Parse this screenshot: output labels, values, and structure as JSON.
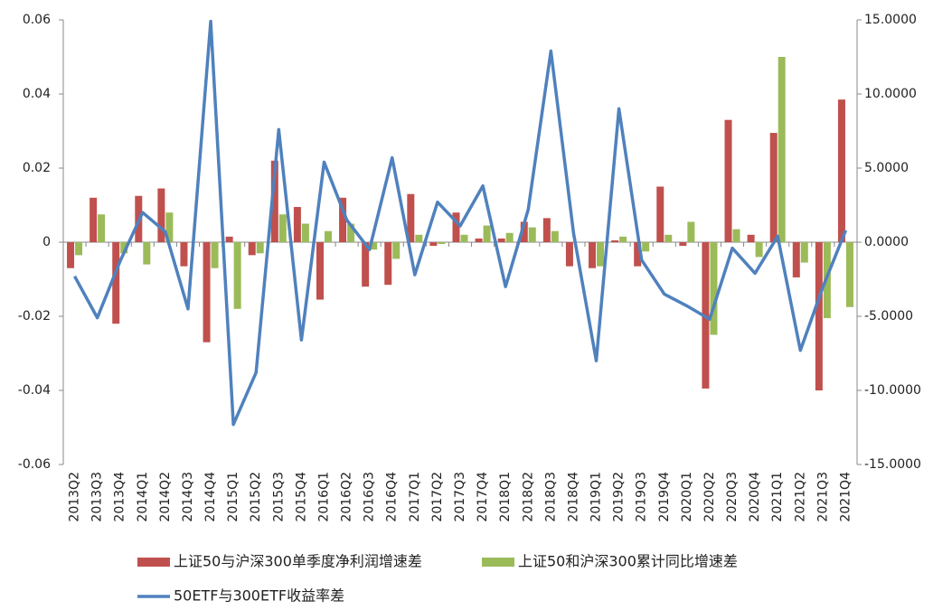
{
  "chart_data": {
    "type": "bar-line",
    "categories": [
      "2013Q2",
      "2013Q3",
      "2013Q4",
      "2014Q1",
      "2014Q2",
      "2014Q3",
      "2014Q4",
      "2015Q1",
      "2015Q2",
      "2015Q3",
      "2015Q4",
      "2016Q1",
      "2016Q2",
      "2016Q3",
      "2016Q4",
      "2017Q1",
      "2017Q2",
      "2017Q3",
      "2017Q4",
      "2018Q1",
      "2018Q2",
      "2018Q3",
      "2018Q4",
      "2019Q1",
      "2019Q2",
      "2019Q3",
      "2019Q4",
      "2020Q1",
      "2020Q2",
      "2020Q3",
      "2020Q4",
      "2021Q1",
      "2021Q2",
      "2021Q3",
      "2021Q4"
    ],
    "series": [
      {
        "name": "上证50与沪深300单季度净利润增速差",
        "type": "bar",
        "color": "#c0504d",
        "values": [
          -0.007,
          0.012,
          -0.022,
          0.0125,
          0.0145,
          -0.0065,
          -0.027,
          0.0015,
          -0.0035,
          0.022,
          0.0095,
          -0.0155,
          0.012,
          -0.012,
          -0.0115,
          0.013,
          -0.001,
          0.008,
          0.001,
          0.001,
          0.0055,
          0.0065,
          -0.0065,
          -0.007,
          0.0005,
          -0.0065,
          0.015,
          -0.001,
          -0.0395,
          0.033,
          0.002,
          0.0295,
          -0.0095,
          -0.04,
          0.0385
        ]
      },
      {
        "name": "上证50和沪深300累计同比增速差",
        "type": "bar",
        "color": "#9bbb59",
        "values": [
          -0.0035,
          0.0075,
          -0.003,
          -0.006,
          0.008,
          0,
          -0.007,
          -0.018,
          -0.003,
          0.0075,
          0.005,
          0.003,
          0.005,
          -0.002,
          -0.0045,
          0.002,
          -0.0005,
          0.002,
          0.0045,
          0.0025,
          0.004,
          0.003,
          0,
          -0.0065,
          0.0015,
          -0.0025,
          0.002,
          0.0055,
          -0.025,
          0.0035,
          -0.004,
          0.05,
          -0.0055,
          -0.0205,
          -0.0175
        ]
      },
      {
        "name": "50ETF与300ETF收益率差",
        "type": "line",
        "axis": "y2",
        "color": "#4f81bd",
        "values": [
          -2.3,
          -5.1,
          -1.3,
          2.0,
          0.7,
          -4.5,
          14.9,
          -12.3,
          -8.8,
          7.6,
          -6.6,
          5.4,
          1.5,
          -0.5,
          5.7,
          -2.2,
          2.7,
          1.1,
          3.8,
          -3.0,
          2.2,
          12.9,
          0.6,
          -8.0,
          9.0,
          -1.2,
          -3.5,
          -4.3,
          -5.2,
          -0.4,
          -2.1,
          0.4,
          -7.3,
          -3.0,
          0.8
        ]
      }
    ],
    "ylim": [
      -0.06,
      0.06
    ],
    "yticks": [
      -0.06,
      -0.04,
      -0.02,
      0,
      0.02,
      0.04,
      0.06
    ],
    "y2lim": [
      -15,
      15
    ],
    "y2ticks": [
      {
        "value": -15,
        "label": "-15.0000"
      },
      {
        "value": -10,
        "label": "-10.0000"
      },
      {
        "value": -5,
        "label": "-5.0000"
      },
      {
        "value": 0,
        "label": "0.0000"
      },
      {
        "value": 5,
        "label": "5.0000"
      },
      {
        "value": 10,
        "label": "10.0000"
      },
      {
        "value": 15,
        "label": "15.0000"
      }
    ],
    "grid": false
  }
}
